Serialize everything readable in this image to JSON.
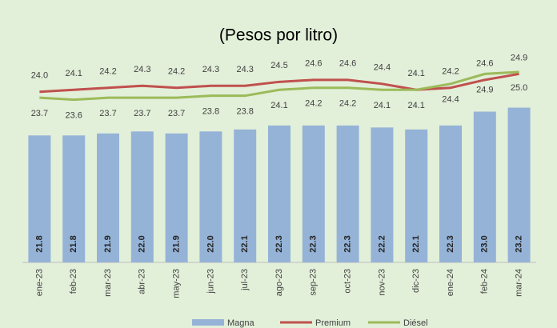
{
  "chart_data": {
    "type": "bar_line",
    "subtitle": "(Pesos por litro)",
    "categories": [
      "ene-23",
      "feb-23",
      "mar-23",
      "abr-23",
      "may-23",
      "jun-23",
      "jul-23",
      "ago-23",
      "sep-23",
      "oct-23",
      "nov-23",
      "dic-23",
      "ene-24",
      "feb-24",
      "mar-24"
    ],
    "series": [
      {
        "name": "Magna",
        "color": "#95b3d7",
        "kind": "bar",
        "values": [
          21.8,
          21.8,
          21.9,
          22.0,
          21.9,
          22.0,
          22.1,
          22.3,
          22.3,
          22.3,
          22.2,
          22.1,
          22.3,
          23.0,
          23.2
        ]
      },
      {
        "name": "Premium",
        "color": "#c0504d",
        "kind": "line",
        "values": [
          24.0,
          24.1,
          24.2,
          24.3,
          24.2,
          24.3,
          24.3,
          24.5,
          24.6,
          24.6,
          24.4,
          24.1,
          24.2,
          24.6,
          24.9
        ]
      },
      {
        "name": "Diésel",
        "color": "#9bbb59",
        "kind": "line",
        "values": [
          23.7,
          23.6,
          23.7,
          23.7,
          23.7,
          23.8,
          23.8,
          24.1,
          24.2,
          24.2,
          24.1,
          24.1,
          24.4,
          24.9,
          25.0
        ]
      }
    ],
    "ylim": [
      15.4,
      25.4
    ]
  }
}
